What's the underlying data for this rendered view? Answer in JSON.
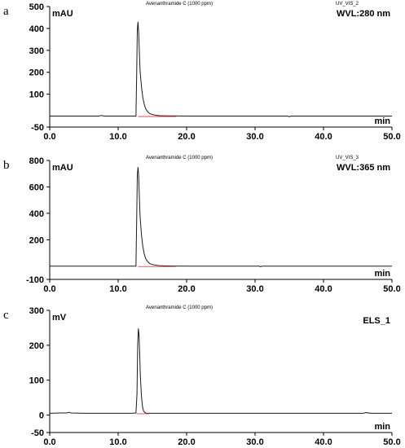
{
  "chart_data": [
    {
      "type": "line",
      "panel_label": "a",
      "title": "Avenanthramide C (1000 ppm)",
      "channel": "UV_VIS_2",
      "wavelength_label": "WVL:280 nm",
      "ylabel": "mAU",
      "xlabel": "min",
      "xlim": [
        0,
        50
      ],
      "ylim": [
        -50,
        500
      ],
      "x_ticks": [
        "0.0",
        "10.0",
        "20.0",
        "30.0",
        "40.0",
        "50.0"
      ],
      "y_ticks": [
        {
          "value": -50,
          "label": "-50"
        },
        {
          "value": 100,
          "label": "100"
        },
        {
          "value": 200,
          "label": "200"
        },
        {
          "value": 300,
          "label": "300"
        },
        {
          "value": 400,
          "label": "400"
        },
        {
          "value": 500,
          "label": "500"
        }
      ],
      "series": [
        {
          "x": [
            0,
            2,
            4,
            6,
            7.2,
            7.5,
            8,
            10,
            12,
            12.6,
            12.7,
            12.8,
            12.9,
            13.0,
            13.1,
            13.2,
            13.4,
            13.6,
            13.8,
            14.0,
            14.3,
            14.6,
            15.0,
            15.5,
            16,
            17,
            18,
            20,
            25,
            30,
            34.8,
            35.0,
            35.2,
            40,
            45,
            50
          ],
          "y": [
            0,
            0,
            0,
            0,
            0,
            3,
            0,
            0,
            0,
            0,
            180,
            395,
            430,
            380,
            290,
            210,
            135,
            85,
            55,
            35,
            20,
            12,
            7,
            4,
            2,
            1,
            1,
            0,
            0,
            0,
            0,
            -3,
            0,
            0,
            0,
            0
          ]
        }
      ],
      "baseline_segment": {
        "x": [
          12.9,
          18.5
        ],
        "y": [
          0,
          0
        ]
      }
    },
    {
      "type": "line",
      "panel_label": "b",
      "title": "Avenanthramide C (1000 ppm)",
      "channel": "UV_VIS_3",
      "wavelength_label": "WVL:365 nm",
      "ylabel": "mAU",
      "xlabel": "min",
      "xlim": [
        0,
        50
      ],
      "ylim": [
        -100,
        800
      ],
      "x_ticks": [
        "0.0",
        "10.0",
        "20.0",
        "30.0",
        "40.0",
        "50.0"
      ],
      "y_ticks": [
        {
          "value": -100,
          "label": "-100"
        },
        {
          "value": 200,
          "label": "200"
        },
        {
          "value": 400,
          "label": "400"
        },
        {
          "value": 600,
          "label": "600"
        },
        {
          "value": 800,
          "label": "800"
        }
      ],
      "series": [
        {
          "x": [
            0,
            2,
            4,
            6,
            8,
            10,
            12,
            12.6,
            12.7,
            12.8,
            12.9,
            13.0,
            13.1,
            13.2,
            13.4,
            13.6,
            13.8,
            14.0,
            14.3,
            14.6,
            15.0,
            15.5,
            16,
            17,
            18,
            20,
            25,
            30.6,
            30.8,
            31.0,
            35,
            40,
            45,
            50
          ],
          "y": [
            0,
            0,
            0,
            0,
            0,
            0,
            0,
            0,
            330,
            690,
            750,
            680,
            520,
            380,
            240,
            150,
            95,
            60,
            35,
            20,
            12,
            7,
            4,
            2,
            1,
            0,
            0,
            0,
            -4,
            0,
            0,
            0,
            0,
            0
          ]
        }
      ],
      "baseline_segment": {
        "x": [
          12.9,
          18.5
        ],
        "y": [
          0,
          0
        ]
      }
    },
    {
      "type": "line",
      "panel_label": "c",
      "title": "Avenanthramide C (1000 ppm)",
      "channel": "ELS_1",
      "wavelength_label": "ELS_1",
      "ylabel": "mV",
      "xlabel": "min",
      "xlim": [
        0,
        50
      ],
      "ylim": [
        -50,
        300
      ],
      "x_ticks": [
        "0.0",
        "10.0",
        "20.0",
        "30.0",
        "40.0",
        "50.0"
      ],
      "y_ticks": [
        {
          "value": -50,
          "label": "-50"
        },
        {
          "value": 0,
          "label": "0"
        },
        {
          "value": 100,
          "label": "100"
        },
        {
          "value": 200,
          "label": "200"
        },
        {
          "value": 300,
          "label": "300"
        }
      ],
      "series": [
        {
          "x": [
            0,
            1.5,
            2.5,
            2.8,
            3.1,
            5,
            8,
            10,
            12,
            12.6,
            12.75,
            12.85,
            12.95,
            13.05,
            13.15,
            13.25,
            13.4,
            13.55,
            13.7,
            13.9,
            14.2,
            15,
            18,
            20,
            25,
            30,
            35,
            40,
            45.8,
            46.2,
            47,
            50
          ],
          "y": [
            5,
            6,
            6,
            8,
            6,
            5,
            5,
            5,
            5,
            6,
            60,
            200,
            248,
            230,
            170,
            110,
            55,
            25,
            12,
            7,
            5,
            5,
            5,
            5,
            5,
            5,
            5,
            5,
            5,
            7,
            5,
            5
          ]
        }
      ],
      "baseline_segment": {
        "x": [
          12.7,
          14.5
        ],
        "y": [
          5,
          5
        ]
      }
    }
  ]
}
